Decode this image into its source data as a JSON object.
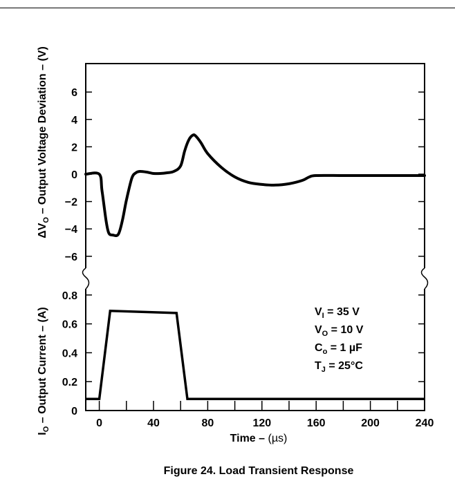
{
  "chart_data": [
    {
      "type": "line",
      "panel": "top",
      "ylabel_prefix": "ΔV",
      "ylabel_sub": "O",
      "ylabel_rest": " – Output Voltage Deviation – (V)",
      "ylim": [
        -7,
        8
      ],
      "yticks": [
        6,
        4,
        2,
        0,
        -2,
        -4,
        -6
      ],
      "xlim": [
        -10,
        240
      ],
      "series": [
        {
          "x": [
            -10,
            0,
            2,
            5,
            7,
            10,
            14,
            17,
            20,
            24,
            27,
            30,
            35,
            40,
            45,
            50,
            55,
            60,
            63,
            66,
            69,
            71,
            75,
            80,
            90,
            100,
            110,
            120,
            130,
            140,
            150,
            155,
            160,
            180,
            200,
            220,
            240
          ],
          "y": [
            0,
            0,
            -1.2,
            -3.4,
            -4.3,
            -4.45,
            -4.4,
            -3.4,
            -1.9,
            -0.3,
            0.1,
            0.2,
            0.15,
            0.05,
            0.05,
            0.1,
            0.2,
            0.6,
            1.7,
            2.5,
            2.85,
            2.8,
            2.3,
            1.5,
            0.5,
            -0.2,
            -0.6,
            -0.75,
            -0.8,
            -0.7,
            -0.45,
            -0.2,
            -0.1,
            -0.1,
            -0.1,
            -0.1,
            -0.1
          ]
        }
      ]
    },
    {
      "type": "line",
      "panel": "bottom",
      "ylabel_prefix": "I",
      "ylabel_sub": "O",
      "ylabel_rest": " – Output Current – (A)",
      "xlabel_text": "Time – ",
      "xlabel_unit": "(µs)",
      "ylim": [
        0,
        0.85
      ],
      "yticks": [
        0.8,
        0.6,
        0.4,
        0.2,
        0
      ],
      "xlim": [
        -10,
        240
      ],
      "xticks": [
        0,
        40,
        80,
        120,
        160,
        200,
        240
      ],
      "series": [
        {
          "x": [
            -10,
            0,
            8,
            57,
            65,
            240
          ],
          "y": [
            0.08,
            0.08,
            0.69,
            0.675,
            0.08,
            0.08
          ]
        }
      ]
    }
  ],
  "conditions": [
    {
      "main": "V",
      "sub": "I",
      "rest": " = 35 V"
    },
    {
      "main": "V",
      "sub": "O",
      "rest": " = 10 V"
    },
    {
      "main": "C",
      "sub": "o",
      "rest": " = 1 µF"
    },
    {
      "main": "T",
      "sub": "J",
      "rest": " = 25°C"
    }
  ],
  "caption": "Figure 24. Load Transient Response",
  "colors": {
    "ink": "#000000",
    "background": "#ffffff"
  }
}
